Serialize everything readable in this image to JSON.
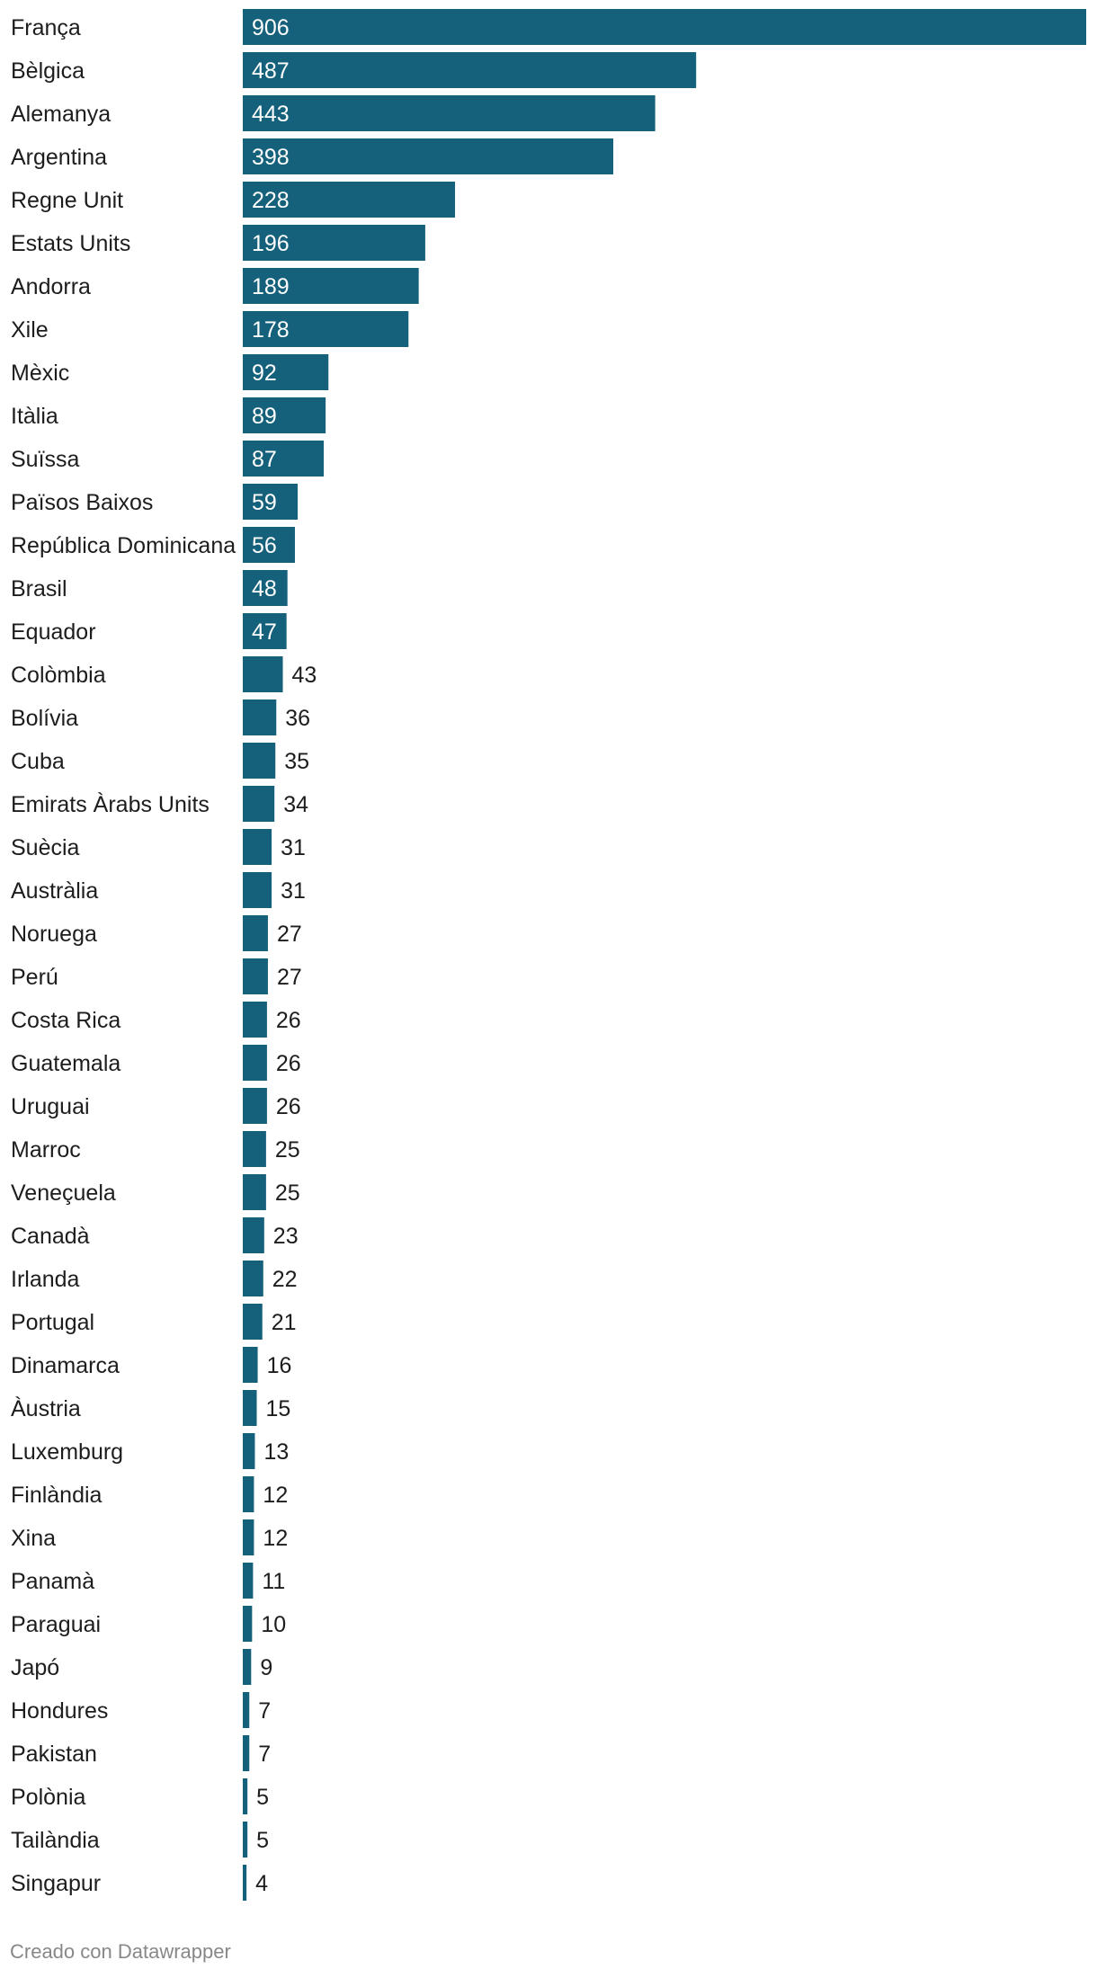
{
  "chart_data": {
    "type": "bar",
    "orientation": "horizontal",
    "categories": [
      "França",
      "Bèlgica",
      "Alemanya",
      "Argentina",
      "Regne Unit",
      "Estats Units",
      "Andorra",
      "Xile",
      "Mèxic",
      "Itàlia",
      "Suïssa",
      "Països Baixos",
      "República Dominicana",
      "Brasil",
      "Equador",
      "Colòmbia",
      "Bolívia",
      "Cuba",
      "Emirats Àrabs Units",
      "Suècia",
      "Austràlia",
      "Noruega",
      "Perú",
      "Costa Rica",
      "Guatemala",
      "Uruguai",
      "Marroc",
      "Veneçuela",
      "Canadà",
      "Irlanda",
      "Portugal",
      "Dinamarca",
      "Àustria",
      "Luxemburg",
      "Finlàndia",
      "Xina",
      "Panamà",
      "Paraguai",
      "Japó",
      "Hondures",
      "Pakistan",
      "Polònia",
      "Tailàndia",
      "Singapur"
    ],
    "values": [
      906,
      487,
      443,
      398,
      228,
      196,
      189,
      178,
      92,
      89,
      87,
      59,
      56,
      48,
      47,
      43,
      36,
      35,
      34,
      31,
      31,
      27,
      27,
      26,
      26,
      26,
      25,
      25,
      23,
      22,
      21,
      16,
      15,
      13,
      12,
      12,
      11,
      10,
      9,
      7,
      7,
      5,
      5,
      4
    ],
    "xlim": [
      0,
      906
    ],
    "grid": false,
    "legend": "none",
    "bar_color": "#15607a",
    "label_inside_color": "#ffffff",
    "label_outside_color": "#1d1d1d"
  },
  "footer": {
    "credit": "Creado con Datawrapper"
  }
}
